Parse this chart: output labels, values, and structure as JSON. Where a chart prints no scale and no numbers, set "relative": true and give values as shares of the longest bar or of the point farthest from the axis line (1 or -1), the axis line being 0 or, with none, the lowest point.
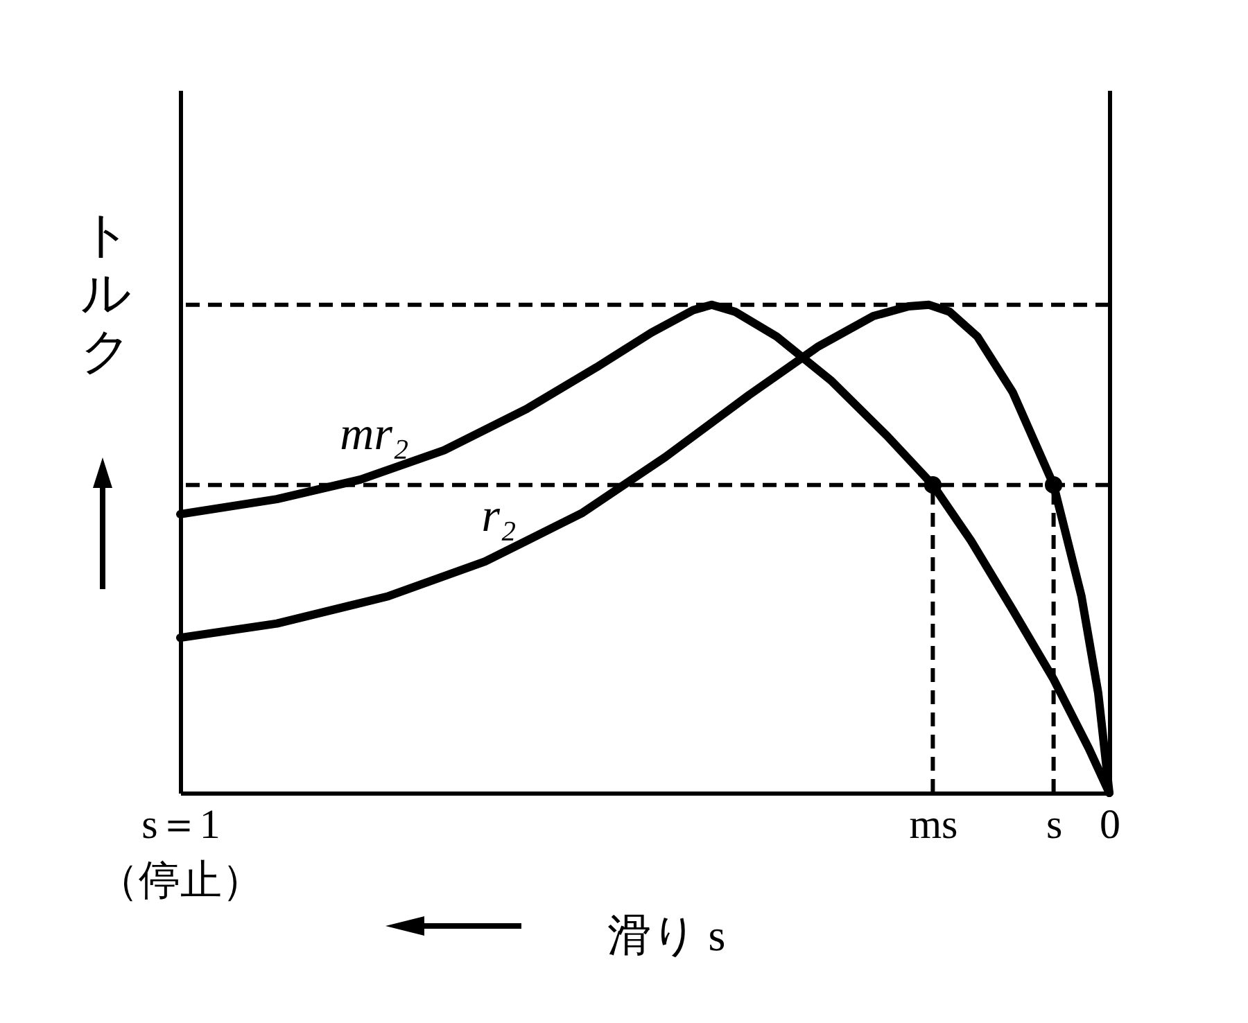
{
  "chart_data": {
    "type": "line",
    "relative": true,
    "ylabel": "トルク",
    "xlabel": "滑り s",
    "xlim": [
      1,
      0
    ],
    "annotations": [
      "（停止）"
    ],
    "xticks": [
      {
        "value": 1,
        "label": "s＝1"
      },
      {
        "value": 0.19,
        "label": "ms"
      },
      {
        "value": 0.06,
        "label": "s"
      },
      0
    ],
    "series": [
      {
        "name": "mr₂",
        "color": "#000000",
        "x": [
          1.0,
          0.896,
          0.806,
          0.716,
          0.627,
          0.552,
          0.493,
          0.448,
          0.428,
          0.403,
          0.358,
          0.299,
          0.239,
          0.19,
          0.149,
          0.104,
          0.06,
          0.022,
          0
        ],
        "values": [
          0.571,
          0.602,
          0.642,
          0.702,
          0.787,
          0.872,
          0.943,
          0.989,
          1.0,
          0.986,
          0.935,
          0.844,
          0.731,
          0.631,
          0.517,
          0.375,
          0.233,
          0.091,
          0
        ]
      },
      {
        "name": "r₂",
        "color": "#000000",
        "x": [
          1.0,
          0.896,
          0.776,
          0.672,
          0.567,
          0.478,
          0.388,
          0.313,
          0.254,
          0.216,
          0.194,
          0.172,
          0.142,
          0.104,
          0.06,
          0.03,
          0.012,
          0
        ],
        "values": [
          0.318,
          0.347,
          0.403,
          0.474,
          0.574,
          0.688,
          0.815,
          0.915,
          0.977,
          0.997,
          1.0,
          0.986,
          0.935,
          0.821,
          0.631,
          0.403,
          0.205,
          0
        ]
      },
      {
        "type": "scatter",
        "marker": "circle",
        "color": "#000000",
        "x": [
          0.19,
          0.06
        ],
        "values": [
          0.631,
          0.631
        ]
      }
    ],
    "ref_lines": [
      {
        "axis": "y",
        "value": 1,
        "color": "#000000",
        "line_style": "dashed"
      },
      {
        "axis": "y",
        "value": 0.631,
        "color": "#000000",
        "line_style": "dashed"
      },
      {
        "axis": "x",
        "value": 0.19,
        "color": "#000000",
        "line_style": "dashed"
      },
      {
        "axis": "x",
        "value": 0.06,
        "color": "#000000",
        "line_style": "dashed"
      }
    ],
    "marker": "none",
    "line_style": "solid",
    "grid": false
  }
}
